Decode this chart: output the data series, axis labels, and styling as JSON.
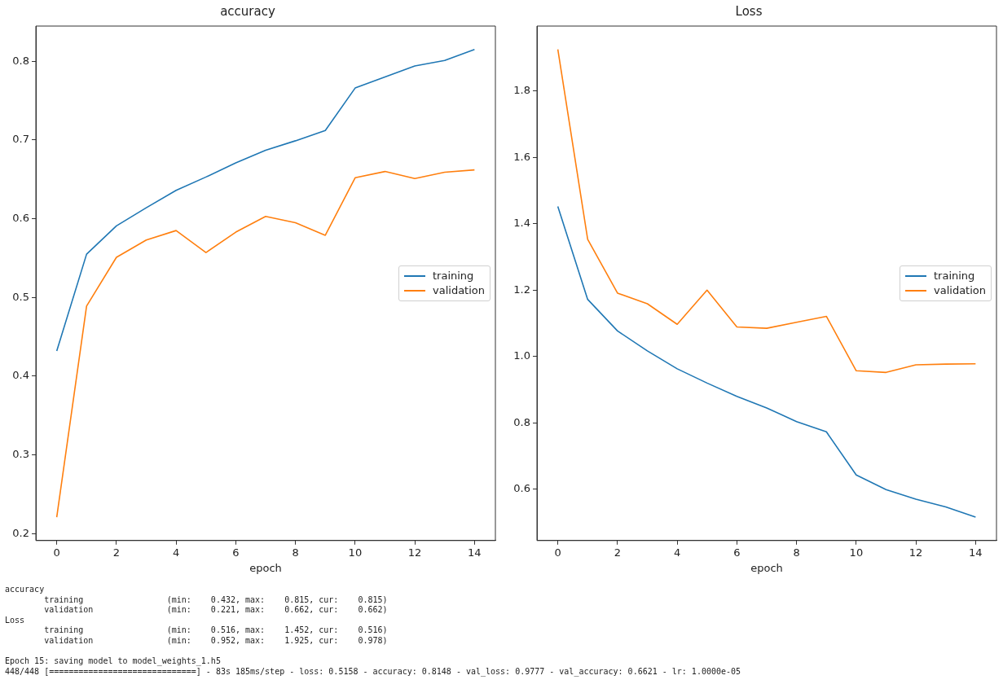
{
  "chart_data": [
    {
      "type": "line",
      "title": "accuracy",
      "xlabel": "epoch",
      "x": [
        0,
        1,
        2,
        3,
        4,
        5,
        6,
        7,
        8,
        9,
        10,
        11,
        12,
        13,
        14
      ],
      "xlim": [
        -0.7,
        14.7
      ],
      "xticks": [
        0,
        2,
        4,
        6,
        8,
        10,
        12,
        14
      ],
      "ylim": [
        0.1913,
        0.8447
      ],
      "yticks": [
        0.2,
        0.3,
        0.4,
        0.5,
        0.6,
        0.7,
        0.8
      ],
      "grid": false,
      "legend": "center right",
      "series": [
        {
          "name": "training",
          "color": "#1f77b4",
          "values": [
            0.432,
            0.555,
            0.591,
            0.614,
            0.636,
            0.653,
            0.671,
            0.687,
            0.699,
            0.712,
            0.766,
            0.78,
            0.794,
            0.801,
            0.815
          ]
        },
        {
          "name": "validation",
          "color": "#ff7f0e",
          "values": [
            0.221,
            0.489,
            0.551,
            0.573,
            0.585,
            0.557,
            0.583,
            0.603,
            0.595,
            0.579,
            0.652,
            0.66,
            0.651,
            0.659,
            0.662
          ]
        }
      ]
    },
    {
      "type": "line",
      "title": "Loss",
      "xlabel": "epoch",
      "x": [
        0,
        1,
        2,
        3,
        4,
        5,
        6,
        7,
        8,
        9,
        10,
        11,
        12,
        13,
        14
      ],
      "xlim": [
        -0.7,
        14.7
      ],
      "xticks": [
        0,
        2,
        4,
        6,
        8,
        10,
        12,
        14
      ],
      "ylim": [
        0.4455,
        1.9955
      ],
      "yticks": [
        0.6,
        0.8,
        {
          "value": 1,
          "label": "1.0"
        },
        1.2,
        1.4,
        1.6,
        1.8
      ],
      "grid": false,
      "legend": "center right",
      "series": [
        {
          "name": "training",
          "color": "#1f77b4",
          "values": [
            1.452,
            1.172,
            1.077,
            1.017,
            0.963,
            0.92,
            0.88,
            0.845,
            0.804,
            0.773,
            0.643,
            0.599,
            0.57,
            0.547,
            0.516
          ]
        },
        {
          "name": "validation",
          "color": "#ff7f0e",
          "values": [
            1.925,
            1.353,
            1.191,
            1.159,
            1.097,
            1.2,
            1.089,
            1.085,
            1.103,
            1.121,
            0.957,
            0.952,
            0.975,
            0.977,
            0.978
          ]
        }
      ]
    },
    {
      "type": "other",
      "annotations": [
        "accuracy",
        "\ttraining           \t (min:    0.432, max:    0.815, cur:    0.815)",
        "\tvalidation         \t (min:    0.221, max:    0.662, cur:    0.662)",
        "Loss",
        "\ttraining           \t (min:    0.516, max:    1.452, cur:    0.516)",
        "\tvalidation         \t (min:    0.952, max:    1.925, cur:    0.978)",
        "Epoch 15: saving model to model_weights_1.h5",
        "448/448 [==============================] - 83s 185ms/step - loss: 0.5158 - accuracy: 0.8148 - val_loss: 0.9777 - val_accuracy: 0.6621 - lr: 1.0000e-05"
      ]
    }
  ]
}
